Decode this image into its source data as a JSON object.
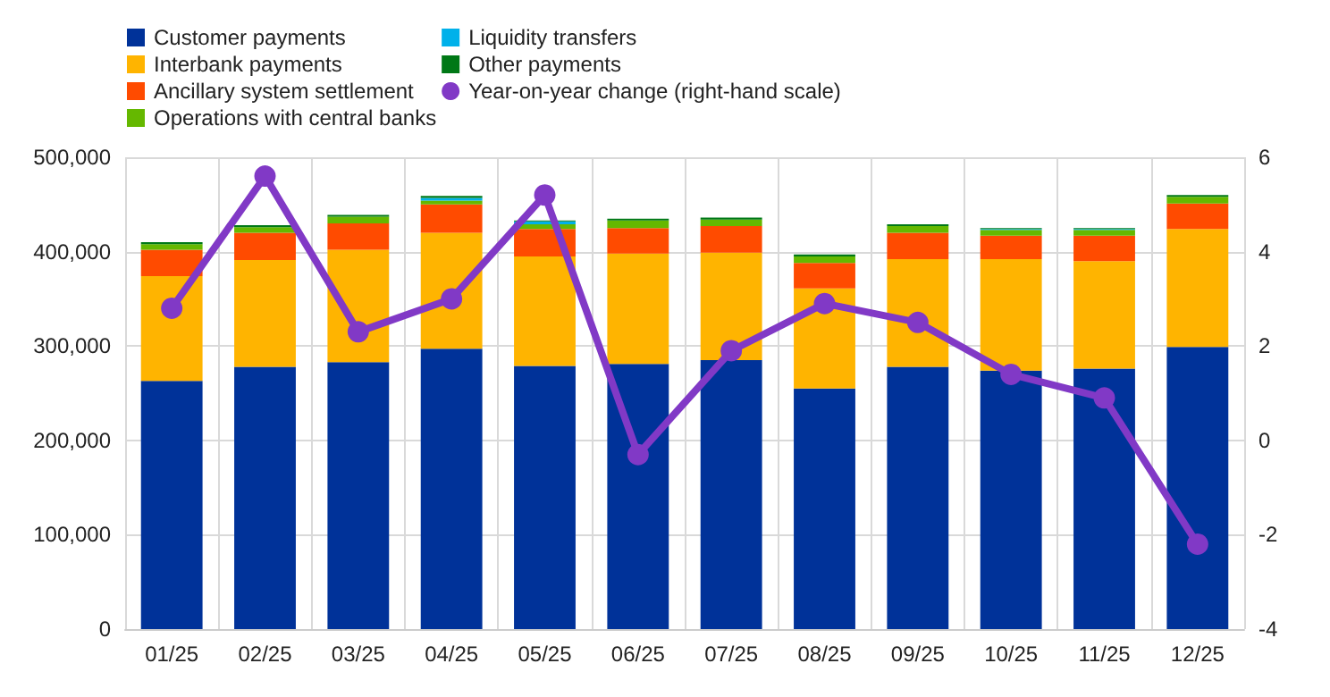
{
  "chart_data": {
    "type": "bar",
    "stacked": true,
    "categories": [
      "01/25",
      "02/25",
      "03/25",
      "04/25",
      "05/25",
      "06/25",
      "07/25",
      "08/25",
      "09/25",
      "10/25",
      "11/25",
      "12/25"
    ],
    "series": [
      {
        "name": "Customer payments",
        "color": "#003299",
        "values": [
          263000,
          278000,
          283000,
          297000,
          279000,
          281000,
          285000,
          255000,
          278000,
          274000,
          276000,
          299000
        ]
      },
      {
        "name": "Interbank payments",
        "color": "#ffb400",
        "values": [
          111000,
          113000,
          119000,
          123000,
          116000,
          117000,
          114000,
          106000,
          114000,
          118000,
          114000,
          125000
        ]
      },
      {
        "name": "Ancillary system settlement",
        "color": "#ff4b00",
        "values": [
          28000,
          29000,
          28000,
          30000,
          29000,
          27000,
          28000,
          27000,
          28000,
          25000,
          27000,
          27000
        ]
      },
      {
        "name": "Operations with central banks",
        "color": "#65b800",
        "values": [
          6000,
          6000,
          7000,
          4000,
          5000,
          8000,
          7000,
          7000,
          7000,
          6000,
          6000,
          7000
        ]
      },
      {
        "name": "Liquidity transfers",
        "color": "#00b1ea",
        "values": [
          0,
          0,
          0,
          3000,
          3000,
          0,
          0,
          0,
          0,
          1000,
          1000,
          0
        ]
      },
      {
        "name": "Other payments",
        "color": "#007816",
        "values": [
          2000,
          2000,
          2000,
          2000,
          1000,
          2000,
          2000,
          2000,
          2000,
          1000,
          1000,
          2000
        ]
      },
      {
        "name": "Year-on-year change (right-hand scale)",
        "type": "line",
        "axis": "y2",
        "color": "#8139c6",
        "marker": "circle",
        "values": [
          2.8,
          5.6,
          2.3,
          3.0,
          5.2,
          -0.3,
          1.9,
          2.9,
          2.5,
          1.4,
          0.9,
          -2.2
        ]
      }
    ],
    "ylim": [
      0,
      500000
    ],
    "yticks": [
      0,
      {
        "value": 100000,
        "label": "100,000"
      },
      {
        "value": 200000,
        "label": "200,000"
      },
      {
        "value": 300000,
        "label": "300,000"
      },
      {
        "value": 400000,
        "label": "400,000"
      },
      {
        "value": 500000,
        "label": "500,000"
      }
    ],
    "y2lim": [
      -4,
      6
    ],
    "y2ticks": [
      -4,
      -2,
      0,
      2,
      4,
      6
    ],
    "grid": true,
    "legend": "top left"
  }
}
